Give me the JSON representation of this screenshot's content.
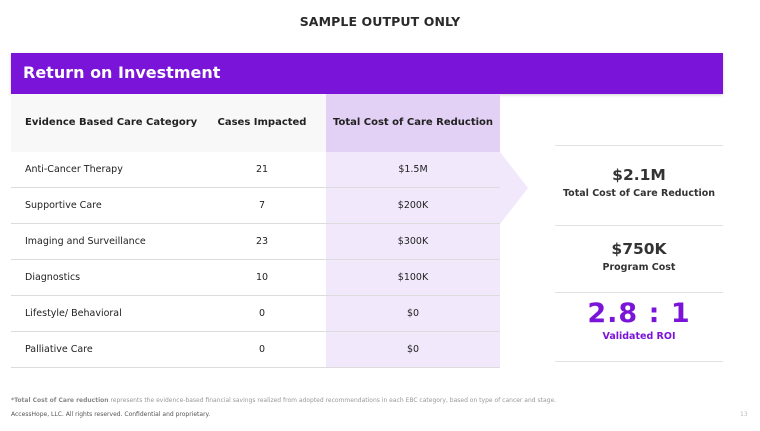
{
  "banner": "SAMPLE OUTPUT ONLY",
  "header": {
    "title": "Return on Investment"
  },
  "table": {
    "columns": [
      "Evidence Based Care Category",
      "Cases Impacted",
      "Total Cost of Care Reduction"
    ],
    "rows": [
      {
        "category": "Anti-Cancer Therapy",
        "cases": "21",
        "reduction": "$1.5M"
      },
      {
        "category": "Supportive Care",
        "cases": "7",
        "reduction": "$200K"
      },
      {
        "category": "Imaging and Surveillance",
        "cases": "23",
        "reduction": "$300K"
      },
      {
        "category": "Diagnostics",
        "cases": "10",
        "reduction": "$100K"
      },
      {
        "category": "Lifestyle/ Behavioral",
        "cases": "0",
        "reduction": "$0"
      },
      {
        "category": "Palliative Care",
        "cases": "0",
        "reduction": "$0"
      }
    ]
  },
  "summary": {
    "total": {
      "value": "$2.1M",
      "label": "Total Cost of Care Reduction"
    },
    "program": {
      "value": "$750K",
      "label": "Program Cost"
    },
    "roi": {
      "value": "2.8 : 1",
      "label": "Validated ROI"
    }
  },
  "footer": {
    "footnote_term": "*Total Cost of Care reduction",
    "footnote_text": " represents the evidence-based financial savings realized from adopted recommendations in each EBC category, based on type of cancer and stage.",
    "copyright": "AccessHope, LLC. All rights reserved. Confidential and proprietary.",
    "page": "13"
  },
  "colors": {
    "accent": "#7a14d8",
    "highlight": "#e2d0f5",
    "highlight_light": "#f1e8fb"
  }
}
